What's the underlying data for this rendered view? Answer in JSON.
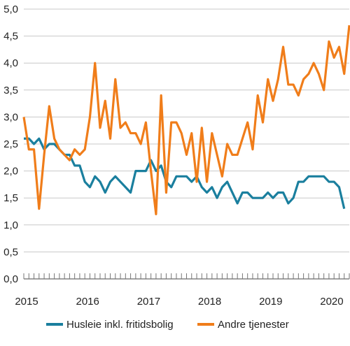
{
  "chart_data": {
    "type": "line",
    "title": "",
    "xlabel": "",
    "ylabel": "",
    "ylim": [
      0,
      5
    ],
    "yticks": [
      "0,0",
      "0,5",
      "1,0",
      "1,5",
      "2,0",
      "2,5",
      "3,0",
      "3,5",
      "4,0",
      "4,5",
      "5,0"
    ],
    "xticks": [
      {
        "label": "2015",
        "month_index": 0
      },
      {
        "label": "2016",
        "month_index": 12
      },
      {
        "label": "2017",
        "month_index": 24
      },
      {
        "label": "2018",
        "month_index": 36
      },
      {
        "label": "2019",
        "month_index": 48
      },
      {
        "label": "2020",
        "month_index": 60
      }
    ],
    "grid": true,
    "legend_position": "bottom",
    "series": [
      {
        "name": "Husleie inkl. fritidsbolig",
        "color": "#1a7f9e",
        "values": [
          2.6,
          2.6,
          2.5,
          2.6,
          2.4,
          2.5,
          2.5,
          2.4,
          2.3,
          2.3,
          2.1,
          2.1,
          1.8,
          1.7,
          1.9,
          1.8,
          1.6,
          1.8,
          1.9,
          1.8,
          1.7,
          1.6,
          2.0,
          2.0,
          2.0,
          2.2,
          2.0,
          2.1,
          1.8,
          1.7,
          1.9,
          1.9,
          1.9,
          1.8,
          1.9,
          1.7,
          1.6,
          1.7,
          1.5,
          1.7,
          1.8,
          1.6,
          1.4,
          1.6,
          1.6,
          1.5,
          1.5,
          1.5,
          1.6,
          1.5,
          1.6,
          1.6,
          1.4,
          1.5,
          1.8,
          1.8,
          1.9,
          1.9,
          1.9,
          1.9,
          1.8,
          1.8,
          1.7,
          1.3
        ]
      },
      {
        "name": "Andre tjenester",
        "color": "#f07d1a",
        "values": [
          3.0,
          2.4,
          2.4,
          1.3,
          2.3,
          3.2,
          2.6,
          2.4,
          2.3,
          2.2,
          2.4,
          2.3,
          2.4,
          3.0,
          4.0,
          2.8,
          3.3,
          2.6,
          3.7,
          2.8,
          2.9,
          2.7,
          2.7,
          2.5,
          2.9,
          2.0,
          1.2,
          3.4,
          1.6,
          2.9,
          2.9,
          2.7,
          2.3,
          2.7,
          1.8,
          2.8,
          1.8,
          2.7,
          2.3,
          1.9,
          2.5,
          2.3,
          2.3,
          2.6,
          2.9,
          2.4,
          3.4,
          2.9,
          3.7,
          3.3,
          3.7,
          4.3,
          3.6,
          3.6,
          3.4,
          3.7,
          3.8,
          4.0,
          3.8,
          3.5,
          4.4,
          4.1,
          4.3,
          3.8,
          4.7
        ]
      }
    ]
  }
}
